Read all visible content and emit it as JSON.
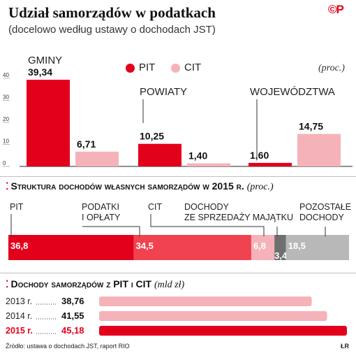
{
  "header": {
    "title": "Udział samorządów w podatkach",
    "subtitle": "(docelowo według ustawy o dochodach JST)",
    "logo": "©P"
  },
  "legend": {
    "pit_label": "PIT",
    "cit_label": "CIT",
    "unit": "(proc.)"
  },
  "colors": {
    "pit": "#e3001b",
    "cit": "#f5b3b9",
    "dark_gray": "#6f6f6f",
    "gray": "#b8b8b8",
    "mid_red": "#f0434f"
  },
  "section2": {
    "title": "Struktura dochodów własnych samorządów w 2015 r.",
    "unit": "(proc.)"
  },
  "section3": {
    "title": "Dochody samorządów z PIT i CIT",
    "unit": "(mld zł)"
  },
  "footer": {
    "source": "Źródło: ustawa o dochodach JST, raport RIO",
    "credit": "ŁR"
  },
  "chart_data": [
    {
      "type": "bar",
      "title": "Udział samorządów w podatkach",
      "subtitle": "(docelowo według ustawy o dochodach JST)",
      "ylabel": "(proc.)",
      "ylim": [
        0,
        40
      ],
      "yticks": [
        0,
        10,
        20,
        30,
        40
      ],
      "categories": [
        "GMINY",
        "POWIATY",
        "WOJEWÓDZTWA"
      ],
      "series": [
        {
          "name": "PIT",
          "values": [
            39.34,
            10.25,
            1.6
          ],
          "labels": [
            "39,34",
            "10,25",
            "1,60"
          ]
        },
        {
          "name": "CIT",
          "values": [
            6.71,
            1.4,
            14.75
          ],
          "labels": [
            "6,71",
            "1,40",
            "14,75"
          ]
        }
      ],
      "legend": "top",
      "grid": false
    },
    {
      "type": "bar",
      "orientation": "horizontal-stacked",
      "title": "Struktura dochodów własnych samorządów w 2015 r.",
      "unit": "(proc.)",
      "segments": [
        {
          "name": "PIT",
          "value": 36.8,
          "label": "36,8",
          "color": "#e3001b"
        },
        {
          "name": "PODATKI I OPŁATY",
          "value": 34.5,
          "label": "34,5",
          "color": "#f0434f"
        },
        {
          "name": "CIT",
          "value": 6.8,
          "label": "6,8",
          "color": "#f5b3b9"
        },
        {
          "name": "DOCHODY ZE SPRZEDAŻY MAJĄTKU",
          "value": 3.4,
          "label": "3,4",
          "color": "#6f6f6f"
        },
        {
          "name": "POZOSTAŁE DOCHODY",
          "value": 18.5,
          "label": "18,5",
          "color": "#b8b8b8"
        }
      ],
      "segment_titles": [
        [
          "PIT"
        ],
        [
          "PODATKI",
          "I OPŁATY"
        ],
        [
          "CIT"
        ],
        [
          "DOCHODY",
          "ZE SPRZEDAŻY MAJĄTKU"
        ],
        [
          "POZOSTAŁE",
          "DOCHODY"
        ]
      ]
    },
    {
      "type": "bar",
      "orientation": "horizontal",
      "title": "Dochody samorządów z PIT i CIT",
      "unit": "(mld zł)",
      "categories": [
        "2013 r.",
        "2014 r.",
        "2015 r."
      ],
      "values": [
        38.76,
        41.55,
        45.18
      ],
      "labels": [
        "38,76",
        "41,55",
        "45,18"
      ],
      "highlight": "2015 r."
    }
  ]
}
